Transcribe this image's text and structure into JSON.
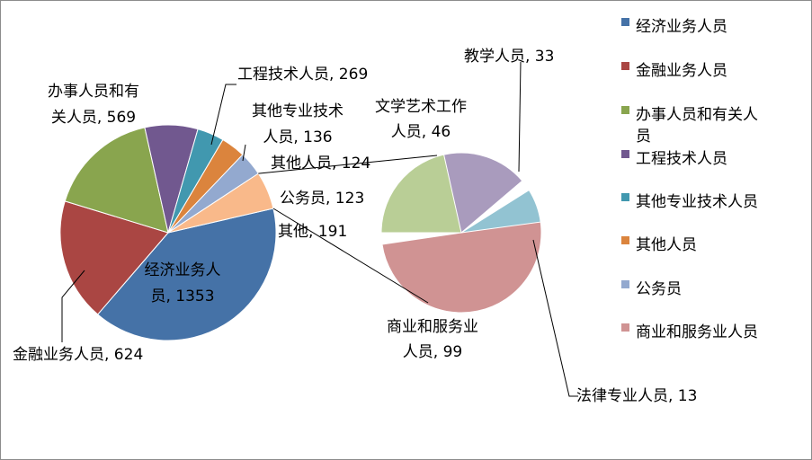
{
  "chart_data": {
    "type": "pie",
    "main_pie": [
      {
        "name": "经济业务人员",
        "value": 1353,
        "color": "#4572A7",
        "label": [
          "经济业务人",
          "员, 1353"
        ]
      },
      {
        "name": "金融业务人员",
        "value": 624,
        "color": "#AA4643",
        "label": [
          "金融业务人员, 624"
        ]
      },
      {
        "name": "办事人员和有关人员",
        "value": 569,
        "color": "#89A54E",
        "label": [
          "办事人员和有",
          "关人员, 569"
        ]
      },
      {
        "name": "工程技术人员",
        "value": 269,
        "color": "#71588F",
        "label": [
          "工程技术人员, 269"
        ]
      },
      {
        "name": "其他专业技术人员",
        "value": 136,
        "color": "#4198AF",
        "label": [
          "其他专业技术",
          "人员, 136"
        ]
      },
      {
        "name": "其他人员",
        "value": 124,
        "color": "#DB843D",
        "label": [
          "其他人员, 124"
        ]
      },
      {
        "name": "公务员",
        "value": 123,
        "color": "#93A9CF",
        "label": [
          "公务员, 123"
        ]
      },
      {
        "name": "其他",
        "value": 191,
        "color": "#F9B98A",
        "label": [
          "其他, 191"
        ]
      }
    ],
    "sub_pie": [
      {
        "name": "商业和服务业人员",
        "value": 99,
        "color": "#D09393",
        "label": [
          "商业和服务业",
          "人员, 99"
        ]
      },
      {
        "name": "文学艺术工作人员",
        "value": 46,
        "color": "#B9CE96",
        "label": [
          "文学艺术工作",
          "人员, 46"
        ]
      },
      {
        "name": "教学人员",
        "value": 33,
        "color": "#A99BBD",
        "label": [
          "教学人员, 33"
        ]
      },
      {
        "name": "法律专业人员",
        "value": 13,
        "color": "#92C3D2",
        "label": [
          "法律专业人员, 13"
        ]
      }
    ],
    "legend": [
      {
        "name": "经济业务人员",
        "color": "#4572A7"
      },
      {
        "name": "金融业务人员",
        "color": "#AA4643"
      },
      {
        "name": "办事人员和有关人员",
        "color": "#89A54E"
      },
      {
        "name": "工程技术人员",
        "color": "#71588F"
      },
      {
        "name": "其他专业技术人员",
        "color": "#4198AF"
      },
      {
        "name": "其他人员",
        "color": "#DB843D"
      },
      {
        "name": "公务员",
        "color": "#93A9CF"
      },
      {
        "name": "商业和服务业人员",
        "color": "#D09393"
      }
    ],
    "legend_position": "right"
  }
}
